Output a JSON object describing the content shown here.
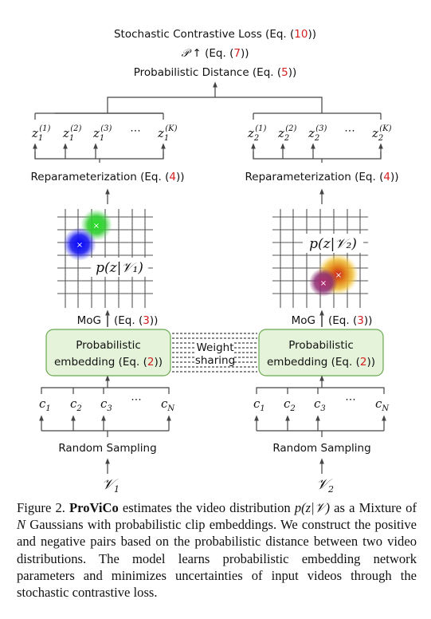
{
  "top": {
    "loss": {
      "text": "Stochastic Contrastive Loss (Eq. (",
      "ref": "10",
      "close": "))"
    },
    "prob": {
      "symbol": "𝒫",
      "arrow": "↑",
      "text": "(Eq. (",
      "ref": "7",
      "close": "))"
    },
    "distance": {
      "text": "Probabilistic Distance (Eq. (",
      "ref": "5",
      "close": "))"
    }
  },
  "branches": [
    {
      "id": "1",
      "z_samples": [
        {
          "base": "z",
          "sub": "1",
          "sup": "(1)"
        },
        {
          "base": "z",
          "sub": "1",
          "sup": "(2)"
        },
        {
          "base": "z",
          "sub": "1",
          "sup": "(3)"
        },
        {
          "base": "⋯",
          "sub": "",
          "sup": ""
        },
        {
          "base": "z",
          "sub": "1",
          "sup": "(K)"
        }
      ],
      "reparam": {
        "text": "Reparameterization (Eq. (",
        "ref": "4",
        "close": "))"
      },
      "dist_label": "p(z|𝒱₁)",
      "mog": {
        "text": "MoG",
        "sep": "|",
        "rest": "(Eq. (",
        "ref": "3",
        "close": "))"
      },
      "embed": {
        "line1": "Probabilistic",
        "line2": "embedding (Eq. (",
        "ref": "2",
        "close": "))"
      },
      "clips": [
        {
          "base": "c",
          "sub": "1"
        },
        {
          "base": "c",
          "sub": "2"
        },
        {
          "base": "c",
          "sub": "3"
        },
        {
          "base": "⋯",
          "sub": ""
        },
        {
          "base": "c",
          "sub": "N"
        }
      ],
      "sampling": "Random Sampling",
      "video": {
        "base": "𝒱",
        "sub": "1"
      }
    },
    {
      "id": "2",
      "z_samples": [
        {
          "base": "z",
          "sub": "2",
          "sup": "(1)"
        },
        {
          "base": "z",
          "sub": "2",
          "sup": "(2)"
        },
        {
          "base": "z",
          "sub": "2",
          "sup": "(3)"
        },
        {
          "base": "⋯",
          "sub": "",
          "sup": ""
        },
        {
          "base": "z",
          "sub": "2",
          "sup": "(K)"
        }
      ],
      "reparam": {
        "text": "Reparameterization (Eq. (",
        "ref": "4",
        "close": "))"
      },
      "dist_label": "p(z|𝒱₂)",
      "mog": {
        "text": "MoG",
        "sep": "|",
        "rest": "(Eq. (",
        "ref": "3",
        "close": "))"
      },
      "embed": {
        "line1": "Probabilistic",
        "line2": "embedding (Eq. (",
        "ref": "2",
        "close": "))"
      },
      "clips": [
        {
          "base": "c",
          "sub": "1"
        },
        {
          "base": "c",
          "sub": "2"
        },
        {
          "base": "c",
          "sub": "3"
        },
        {
          "base": "⋯",
          "sub": ""
        },
        {
          "base": "c",
          "sub": "N"
        }
      ],
      "sampling": "Random Sampling",
      "video": {
        "base": "𝒱",
        "sub": "2"
      }
    }
  ],
  "weight_sharing": {
    "line1": "Weight",
    "line2": "sharing"
  },
  "colors": {
    "embed_fill": "#e4f3da",
    "embed_stroke": "#6aa84f",
    "ref_red": "#d42020",
    "blob_green": "#22cc22",
    "blob_blue": "#1111ee",
    "blob_orange": "#eeaa22",
    "blob_purple": "#9a2a6a",
    "blob_red": "#cc2222"
  },
  "caption": {
    "fig_label": "Figure 2.",
    "name": "ProViCo",
    "part1": " estimates the video distribution ",
    "math1": "p(z|𝒱)",
    "part2": " as a Mixture of ",
    "math2": "N",
    "part3": " Gaussians with probabilistic clip embeddings. We construct the positive and negative pairs based on the probabilistic distance between two video distributions. The model learns probabilistic embedding network parameters and minimizes uncertainties of input videos through the stochastic contrastive loss."
  }
}
